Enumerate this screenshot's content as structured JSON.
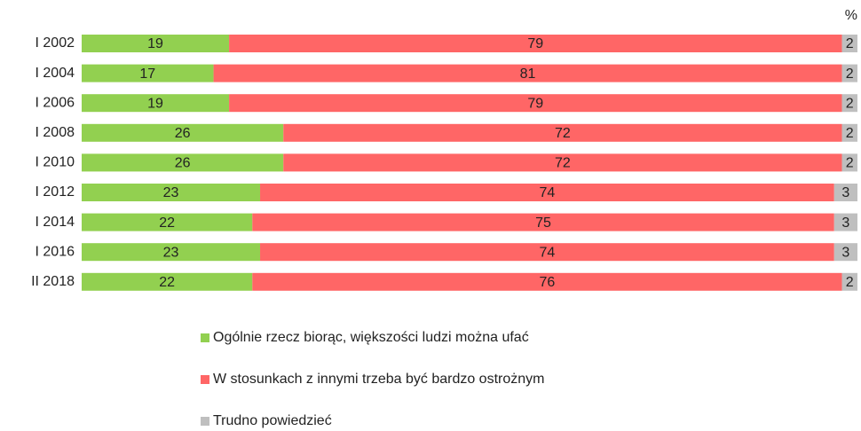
{
  "chart_data": {
    "type": "stacked-bar-horizontal",
    "unit": "%",
    "categories": [
      "I 2002",
      "I 2004",
      "I 2006",
      "I 2008",
      "I 2010",
      "I 2012",
      "I 2014",
      "I 2016",
      "II 2018"
    ],
    "series": [
      {
        "name": "Ogólnie rzecz biorąc, większości ludzi można ufać",
        "color": "#92d050",
        "values": [
          19,
          17,
          19,
          26,
          26,
          23,
          22,
          23,
          22
        ]
      },
      {
        "name": "W stosunkach z innymi trzeba być bardzo ostrożnym",
        "color": "#ff6666",
        "values": [
          79,
          81,
          79,
          72,
          72,
          74,
          75,
          74,
          76
        ]
      },
      {
        "name": "Trudno powiedzieć",
        "color": "#bfbfbf",
        "values": [
          2,
          2,
          2,
          2,
          2,
          3,
          3,
          3,
          2
        ]
      }
    ]
  }
}
